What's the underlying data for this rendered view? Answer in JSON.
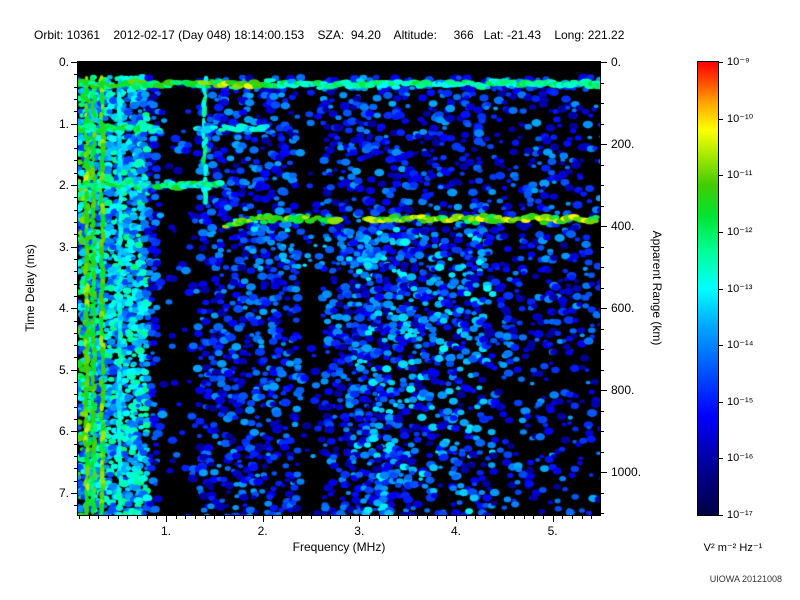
{
  "header": {
    "line": "Orbit: 10361    2012-02-17 (Day 048) 18:14:00.153    SZA:  94.20    Altitude:     366   Lat: -21.43    Long: 221.22"
  },
  "watermark": "UIOWA 20121008",
  "chart_data": {
    "type": "heatmap",
    "title": "",
    "x_axis": {
      "label": "Frequency (MHz)",
      "min": 0.09,
      "max": 5.49,
      "major_ticks": [
        1,
        2,
        3,
        4,
        5
      ],
      "tick_labels": [
        "1.",
        "2.",
        "3.",
        "4.",
        "5."
      ],
      "minor_step": 0.1
    },
    "y_axis": {
      "label": "Time Delay (ms)",
      "min": 0,
      "max": 7.36,
      "major_ticks": [
        0,
        1,
        2,
        3,
        4,
        5,
        6,
        7
      ],
      "tick_labels": [
        "0.",
        "1.",
        "2.",
        "3.",
        "4.",
        "5.",
        "6.",
        "7."
      ],
      "minor_step": 0.2
    },
    "y2_axis": {
      "label": "Apparent Range (km)",
      "km_per_ms": 150,
      "major_ticks": [
        0,
        200,
        400,
        600,
        800,
        1000
      ],
      "tick_labels": [
        "0.",
        "200.",
        "400.",
        "600.",
        "800.",
        "1000."
      ],
      "minor_step": 50
    },
    "colorbar": {
      "unit_label": "V² m⁻² Hz⁻¹",
      "tick_labels": [
        "10⁻⁹",
        "10⁻¹⁰",
        "10⁻¹¹",
        "10⁻¹²",
        "10⁻¹³",
        "10⁻¹⁴",
        "10⁻¹⁵",
        "10⁻¹⁶",
        "10⁻¹⁷"
      ],
      "scale_max_exp": -9,
      "scale_min_exp": -17,
      "stops": [
        {
          "t": 0.0,
          "c": "#000046"
        },
        {
          "t": 0.1,
          "c": "#00008f"
        },
        {
          "t": 0.22,
          "c": "#0000ff"
        },
        {
          "t": 0.32,
          "c": "#0055ff"
        },
        {
          "t": 0.42,
          "c": "#00aaff"
        },
        {
          "t": 0.5,
          "c": "#00ffff"
        },
        {
          "t": 0.58,
          "c": "#00ff99"
        },
        {
          "t": 0.66,
          "c": "#00e433"
        },
        {
          "t": 0.73,
          "c": "#44cc00"
        },
        {
          "t": 0.79,
          "c": "#a0e800"
        },
        {
          "t": 0.85,
          "c": "#ffff00"
        },
        {
          "t": 0.91,
          "c": "#ffa500"
        },
        {
          "t": 0.96,
          "c": "#ff4400"
        },
        {
          "t": 1.0,
          "c": "#ff0000"
        }
      ]
    },
    "plot_bg": "#000000",
    "features": {
      "noise_seed": 20121008,
      "bright_zone_fmax": 0.78,
      "dark_bands": [
        [
          0.88,
          1.33
        ],
        [
          2.32,
          2.62
        ]
      ],
      "diffuse_region": {
        "f0": 2.9,
        "f1": 4.35,
        "d0": 2.65
      },
      "vertical_lines": [
        {
          "freq": 0.18,
          "d0": 0.28,
          "d1": 7.36,
          "intensity": 0.74
        },
        {
          "freq": 0.25,
          "d0": 0.28,
          "d1": 7.36,
          "intensity": 0.68
        },
        {
          "freq": 0.34,
          "d0": 0.28,
          "d1": 7.36,
          "intensity": 0.72
        },
        {
          "freq": 0.52,
          "d0": 0.28,
          "d1": 7.36,
          "intensity": 0.5
        },
        {
          "freq": 1.4,
          "d0": 0.3,
          "d1": 2.3,
          "intensity": 0.56
        }
      ],
      "h_bands": [
        {
          "delay": 0.36,
          "f0": 0.09,
          "f1": 5.49,
          "intensity": 0.68,
          "fade_after": {
            "f": 2.1,
            "drop": 0.1
          },
          "bright_segs": [
            {
              "f0": 1.35,
              "f1": 1.95,
              "add": 0.08
            }
          ]
        },
        {
          "delay": 1.08,
          "f0": 0.09,
          "f1": 2.05,
          "intensity": 0.62,
          "gaps": [
            [
              0.92,
              1.3
            ]
          ],
          "fade_after": {
            "f": 1.3,
            "drop": 0.12
          }
        },
        {
          "delay": 2.0,
          "f0": 0.09,
          "f1": 1.55,
          "intensity": 0.62
        },
        {
          "delay": 2.55,
          "f0": 1.62,
          "f1": 5.45,
          "intensity": 0.72,
          "hook_f": 1.95,
          "hook_rate": 0.3,
          "gaps": [
            [
              2.9,
              3.0
            ]
          ],
          "boost_after": {
            "f": 3.0,
            "add": 0.06
          }
        }
      ],
      "echo_spread": {
        "f0": 1.8,
        "f1": 3.2,
        "d0": 2.6,
        "d1": 3.35,
        "count": 70
      }
    }
  }
}
